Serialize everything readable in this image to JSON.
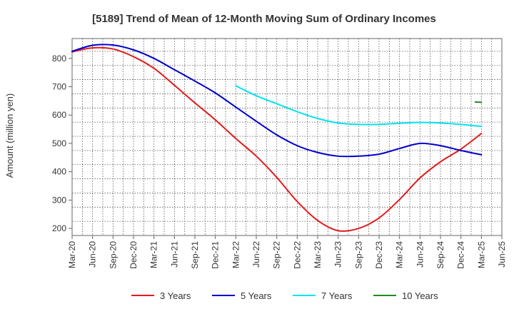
{
  "chart_data": {
    "type": "line",
    "title": "[5189]  Trend of Mean of 12-Month Moving Sum of Ordinary Incomes",
    "xlabel": "",
    "ylabel": "Amount (million yen)",
    "ylim": [
      175,
      870
    ],
    "yticks": [
      200,
      300,
      400,
      500,
      600,
      700,
      800
    ],
    "categories": [
      "Mar-20",
      "Jun-20",
      "Sep-20",
      "Dec-20",
      "Mar-21",
      "Jun-21",
      "Sep-21",
      "Dec-21",
      "Mar-22",
      "Jun-22",
      "Sep-22",
      "Dec-22",
      "Mar-23",
      "Jun-23",
      "Sep-23",
      "Dec-23",
      "Mar-24",
      "Jun-24",
      "Sep-24",
      "Dec-24",
      "Mar-25",
      "Jun-25"
    ],
    "grid": true,
    "legend_position": "bottom",
    "series": [
      {
        "name": "3 Years",
        "color": "#e31a1c",
        "values": [
          823,
          837,
          833,
          806,
          765,
          705,
          643,
          583,
          517,
          455,
          380,
          295,
          228,
          192,
          200,
          237,
          302,
          378,
          435,
          480,
          535,
          null
        ]
      },
      {
        "name": "5 Years",
        "color": "#0000cd",
        "values": [
          825,
          846,
          847,
          830,
          800,
          760,
          720,
          678,
          628,
          578,
          530,
          492,
          468,
          455,
          455,
          462,
          482,
          500,
          492,
          475,
          460,
          null
        ]
      },
      {
        "name": "7 Years",
        "color": "#00e5ee",
        "values": [
          null,
          null,
          null,
          null,
          null,
          null,
          null,
          null,
          703,
          668,
          640,
          612,
          588,
          572,
          567,
          567,
          571,
          574,
          572,
          567,
          560,
          null
        ]
      },
      {
        "name": "10 Years",
        "color": "#228b22",
        "values": [
          null,
          null,
          null,
          null,
          null,
          null,
          null,
          null,
          null,
          null,
          null,
          null,
          null,
          null,
          null,
          null,
          null,
          null,
          null,
          null,
          645,
          null
        ],
        "segment": [
          [
            19.7,
            646
          ],
          [
            20,
            645
          ]
        ]
      }
    ]
  }
}
